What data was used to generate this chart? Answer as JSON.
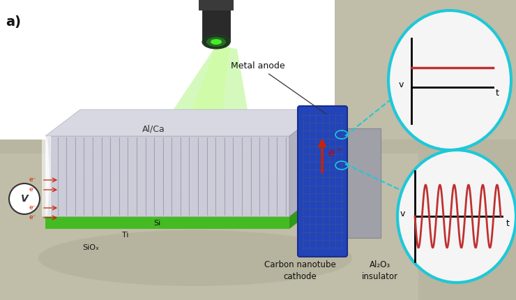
{
  "bg_top_color": "#ffffff",
  "bg_floor_color": "#b0ad98",
  "title_label": "a)",
  "circle_edgecolor": "#1ec8d8",
  "circle_facecolor": "#f5f5f5",
  "circle_linewidth": 3.0,
  "dc_line_color": "#c03030",
  "ac_wave_color": "#c03030",
  "axis_color": "#111111",
  "label_v": "v",
  "label_t": "t",
  "annotation_metal_anode": "Metal anode",
  "annotation_carbon_nanotube": "Carbon nanotube\ncathode",
  "annotation_al2o3": "Al₂O₃\ninsulator",
  "annotation_siox": "SiOₓ",
  "annotation_ti": "Ti",
  "annotation_si": "Si",
  "annotation_alca": "Al/Ca",
  "annotation_eminus": "e⁻",
  "annotation_color_eminus": "#cc0000",
  "dashed_line_color": "#1ec8d8",
  "cnt_blue": "#2244bb",
  "cnt_dark": "#1a2d88",
  "al2o3_color": "#9999aa",
  "silver_top": "#c8c8d0",
  "silver_front": "#b8b8c8",
  "silver_right": "#a8a8b8",
  "purple_color": "#9933cc",
  "green_color": "#44aa22",
  "green_beam": "#88ee44"
}
